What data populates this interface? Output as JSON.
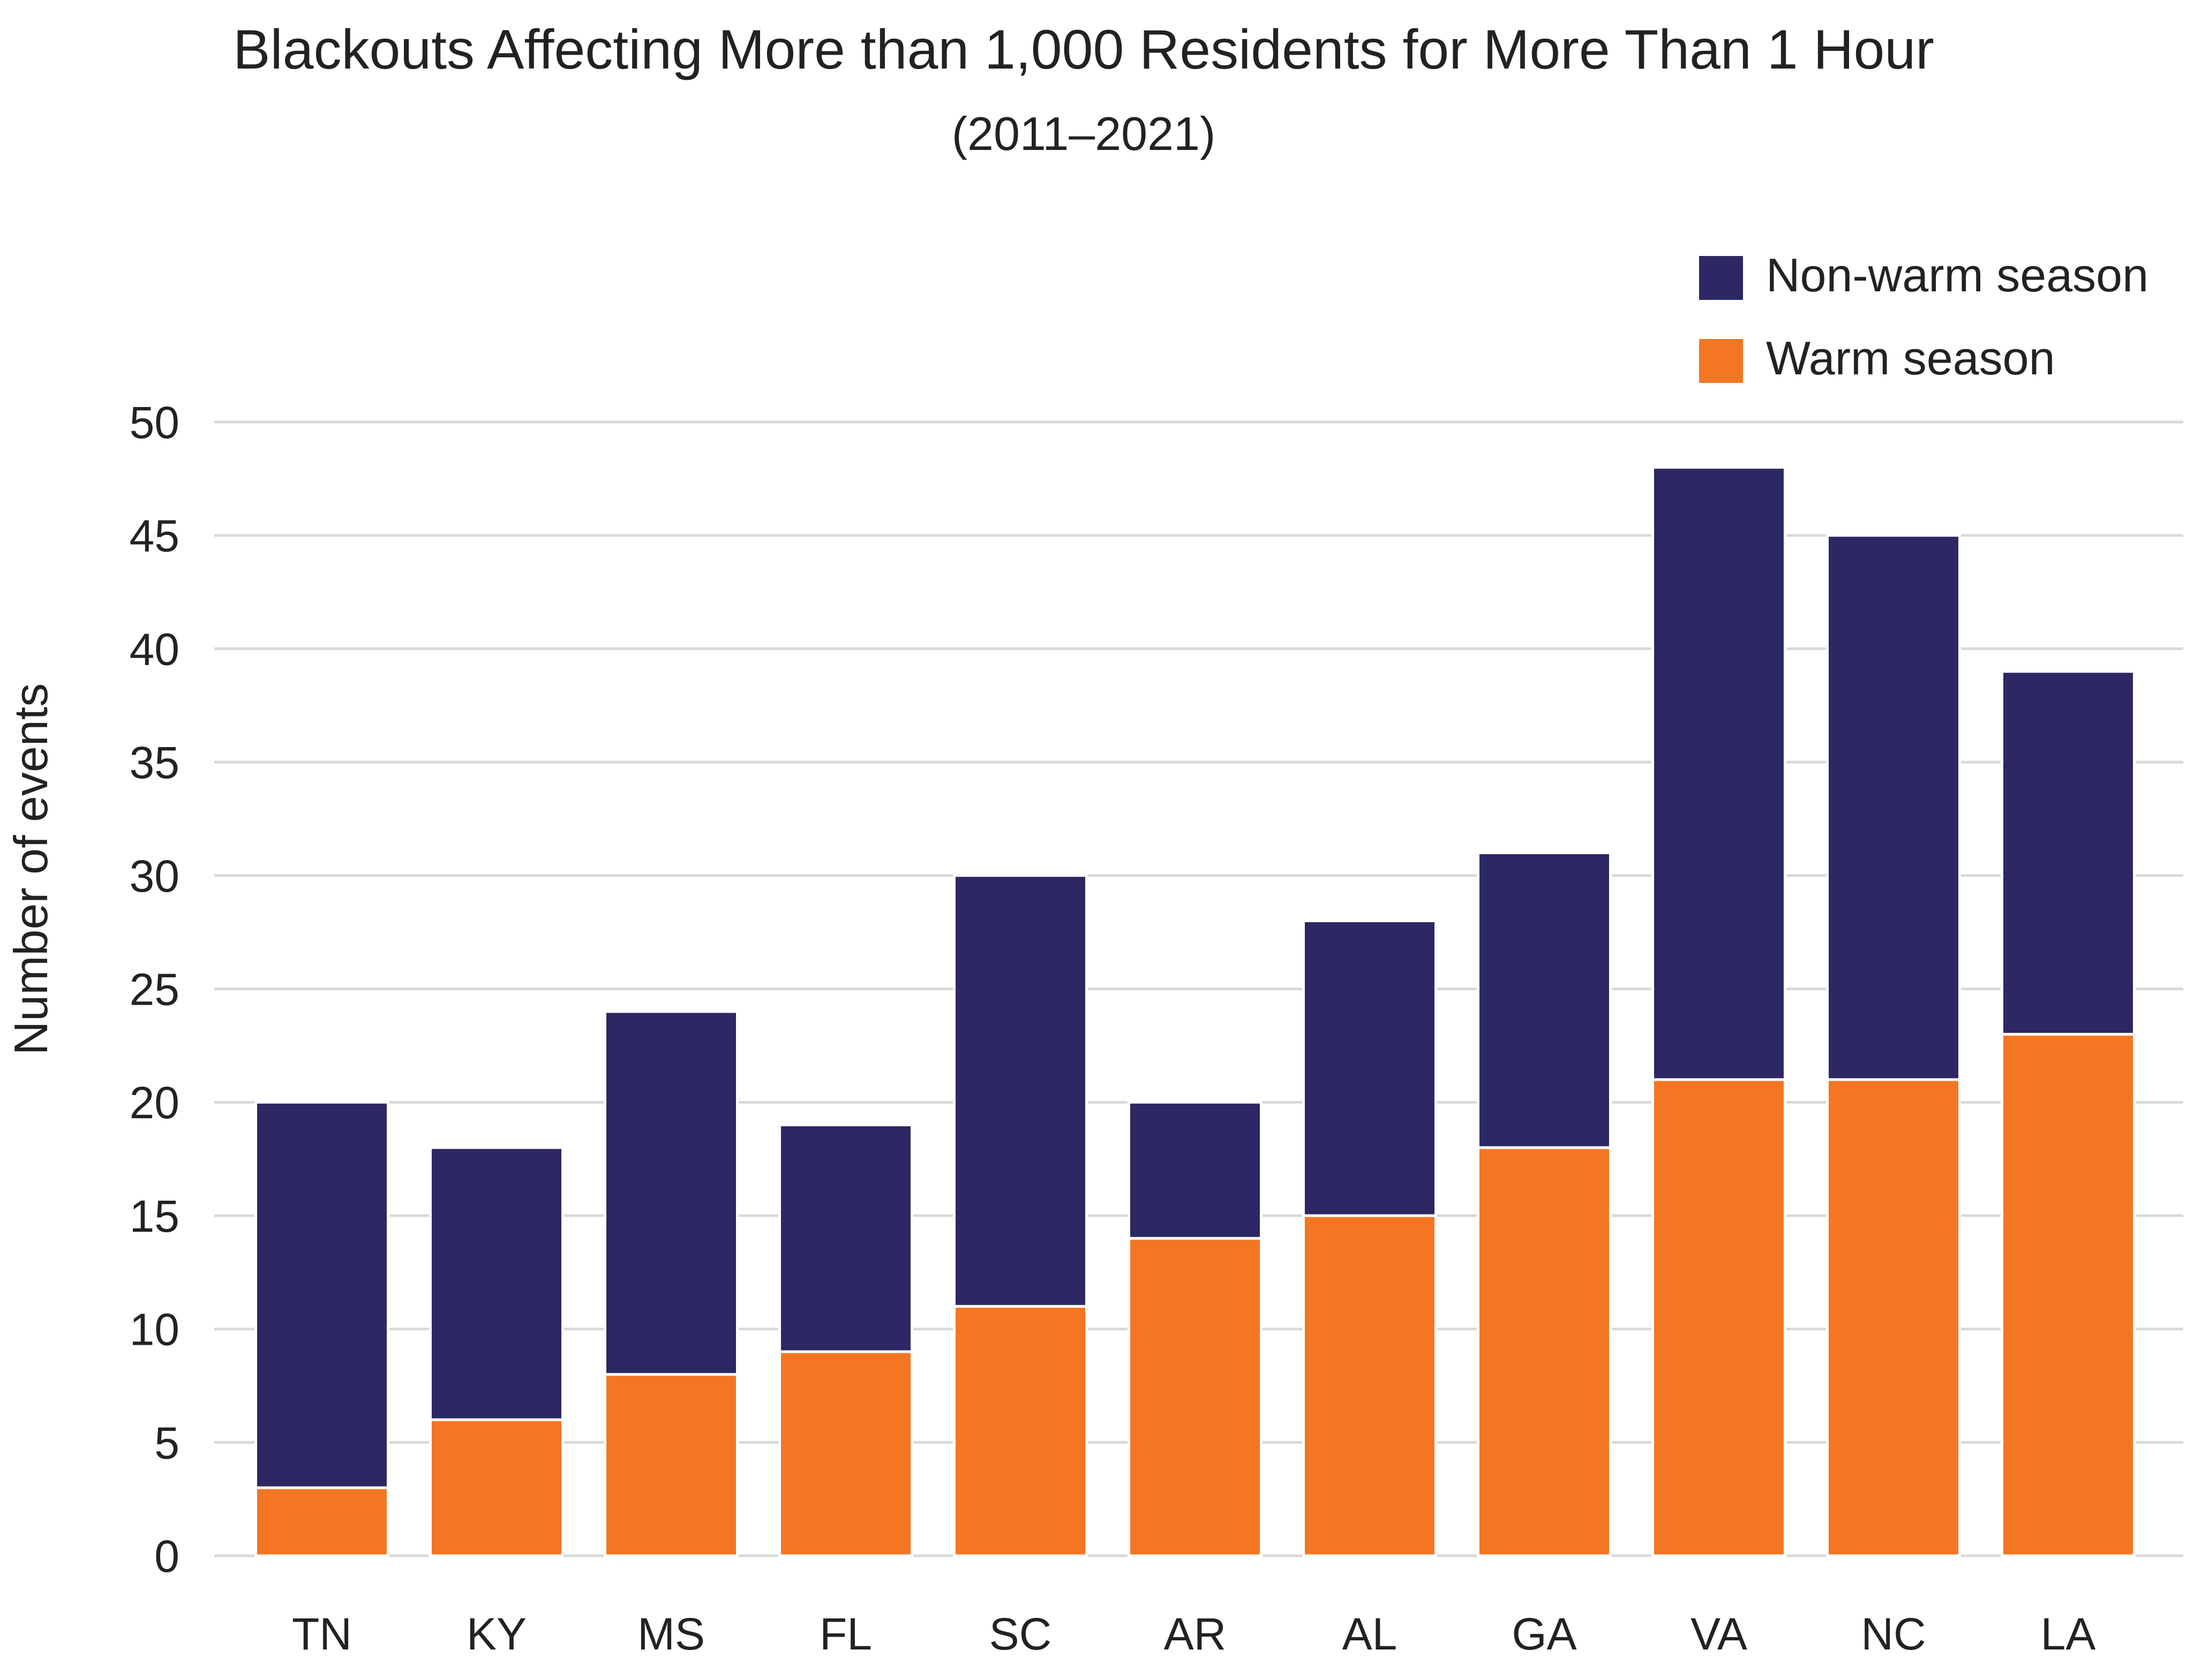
{
  "chart_data": {
    "type": "bar",
    "stacked": true,
    "title": "Blackouts Affecting More than 1,000 Residents for More Than 1 Hour",
    "subtitle": "(2011–2021)",
    "xlabel": "",
    "ylabel": "Number of events",
    "ylim": [
      0,
      50
    ],
    "yticks": [
      0,
      5,
      10,
      15,
      20,
      25,
      30,
      35,
      40,
      45,
      50
    ],
    "grid": true,
    "legend_position": "top-right",
    "categories": [
      "TN",
      "KY",
      "MS",
      "FL",
      "SC",
      "AR",
      "AL",
      "GA",
      "VA",
      "NC",
      "LA"
    ],
    "series": [
      {
        "name": "Warm season",
        "color": "#F47623",
        "values": [
          3,
          6,
          8,
          9,
          11,
          14,
          15,
          18,
          21,
          21,
          23
        ]
      },
      {
        "name": "Non-warm season",
        "color": "#2C2863",
        "values": [
          17,
          12,
          16,
          10,
          19,
          6,
          13,
          13,
          27,
          24,
          16
        ]
      }
    ],
    "legend_order": [
      "Non-warm season",
      "Warm season"
    ]
  }
}
